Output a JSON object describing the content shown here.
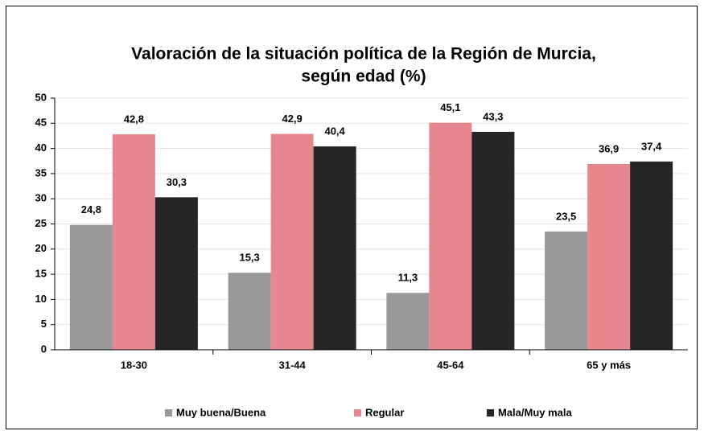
{
  "chart_data": {
    "type": "bar",
    "title": [
      "Valoración de la situación política de la Región de Murcia,",
      "según edad (%)"
    ],
    "categories": [
      "18-30",
      "31-44",
      "45-64",
      "65 y más"
    ],
    "series": [
      {
        "name": "Muy buena/Buena",
        "color": "#999999",
        "values": [
          24.8,
          15.3,
          11.3,
          23.5
        ],
        "value_labels": [
          "24,8",
          "15,3",
          "11,3",
          "23,5"
        ]
      },
      {
        "name": "Regular",
        "color": "#e6878f",
        "values": [
          42.8,
          42.9,
          45.1,
          36.9
        ],
        "value_labels": [
          "42,8",
          "42,9",
          "45,1",
          "36,9"
        ]
      },
      {
        "name": "Mala/Muy mala",
        "color": "#262626",
        "values": [
          30.3,
          40.4,
          43.3,
          37.4
        ],
        "value_labels": [
          "30,3",
          "40,4",
          "43,3",
          "37,4"
        ]
      }
    ],
    "ylim": [
      0,
      50
    ],
    "yticks": [
      0,
      5,
      10,
      15,
      20,
      25,
      30,
      35,
      40,
      45,
      50
    ],
    "grid": true,
    "legend": "bottom"
  }
}
